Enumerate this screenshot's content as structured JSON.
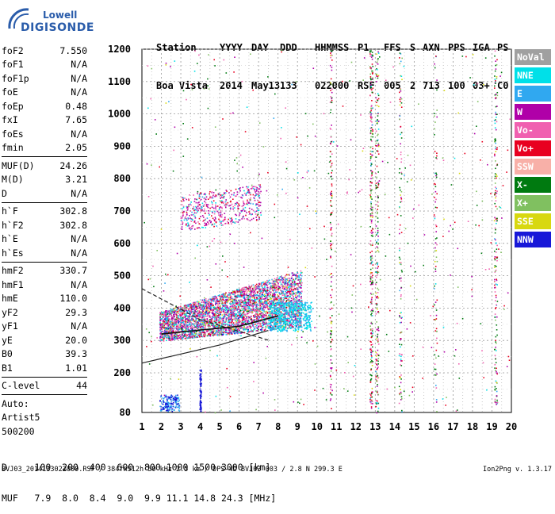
{
  "logo": {
    "line1": "Lowell",
    "line2": "DIGISONDE"
  },
  "header": {
    "labels": [
      "Station",
      "YYYY",
      "DAY",
      "DDD",
      "HHMMSS",
      "P1",
      "FFS",
      "S",
      "AXN",
      "PPS",
      "IGA",
      "PS"
    ],
    "values": [
      "Boa Vista",
      "2014",
      "May13",
      "133",
      "022000",
      "RSF",
      "005",
      "2",
      "713",
      "100",
      "03+",
      "C0"
    ]
  },
  "params_group1": [
    {
      "name": "foF2",
      "value": "7.550"
    },
    {
      "name": "foF1",
      "value": "N/A"
    },
    {
      "name": "foF1p",
      "value": "N/A"
    },
    {
      "name": "foE",
      "value": "N/A"
    },
    {
      "name": "foEp",
      "value": "0.48"
    },
    {
      "name": "fxI",
      "value": "7.65"
    },
    {
      "name": "foEs",
      "value": "N/A"
    },
    {
      "name": "fmin",
      "value": "2.05"
    }
  ],
  "params_group2": [
    {
      "name": "MUF(D)",
      "value": "24.26"
    },
    {
      "name": "M(D)",
      "value": "3.21"
    },
    {
      "name": "D",
      "value": "N/A"
    }
  ],
  "params_group3": [
    {
      "name": "h`F",
      "value": "302.8"
    },
    {
      "name": "h`F2",
      "value": "302.8"
    },
    {
      "name": "h`E",
      "value": "N/A"
    },
    {
      "name": "h`Es",
      "value": "N/A"
    }
  ],
  "params_group4": [
    {
      "name": "hmF2",
      "value": "330.7"
    },
    {
      "name": "hmF1",
      "value": "N/A"
    },
    {
      "name": "hmE",
      "value": "110.0"
    },
    {
      "name": "yF2",
      "value": "29.3"
    },
    {
      "name": "yF1",
      "value": "N/A"
    },
    {
      "name": "yE",
      "value": "20.0"
    },
    {
      "name": "B0",
      "value": "39.3"
    },
    {
      "name": "B1",
      "value": "1.01"
    }
  ],
  "params_group5": [
    {
      "name": "C-level",
      "value": "44"
    }
  ],
  "autoscaling": {
    "line1": "Auto:",
    "line2": "Artist5",
    "line3": "500200"
  },
  "legend": [
    {
      "label": "NoVal",
      "color": "#a0a0a0"
    },
    {
      "label": "NNE",
      "color": "#00e0e8"
    },
    {
      "label": "E",
      "color": "#30a8f0"
    },
    {
      "label": "W",
      "color": "#b000a8"
    },
    {
      "label": "Vo-",
      "color": "#f060b0"
    },
    {
      "label": "Vo+",
      "color": "#e80020"
    },
    {
      "label": "SSW",
      "color": "#f8b0a8"
    },
    {
      "label": "X-",
      "color": "#007a10"
    },
    {
      "label": "X+",
      "color": "#80c060"
    },
    {
      "label": "SSE",
      "color": "#d8d810"
    },
    {
      "label": "NNW",
      "color": "#1818d8"
    }
  ],
  "axes": {
    "x_ticks": [
      "1",
      "2",
      "3",
      "4",
      "5",
      "6",
      "7",
      "8",
      "9",
      "10",
      "11",
      "12",
      "13",
      "14",
      "15",
      "16",
      "17",
      "18",
      "19",
      "20"
    ],
    "y_ticks": [
      "80",
      "200",
      "300",
      "400",
      "500",
      "600",
      "700",
      "800",
      "900",
      "1000",
      "1100",
      "1200"
    ]
  },
  "muf_table": {
    "row_d": "D     100  200  400  600  800 1000 1500 3000 [km]",
    "row_muf": "MUF   7.9  8.0  8.4  9.0  9.9 11.1 14.8 24.3 [MHz]"
  },
  "footer": {
    "left": "BVJ03_2014133022000.RSF / 384fx512h 50 kHz 2.5 km / DPS-4D BVJ03 003 / 2.8 N 299.3 E",
    "right": "Ion2Png v. 1.3.17"
  }
}
